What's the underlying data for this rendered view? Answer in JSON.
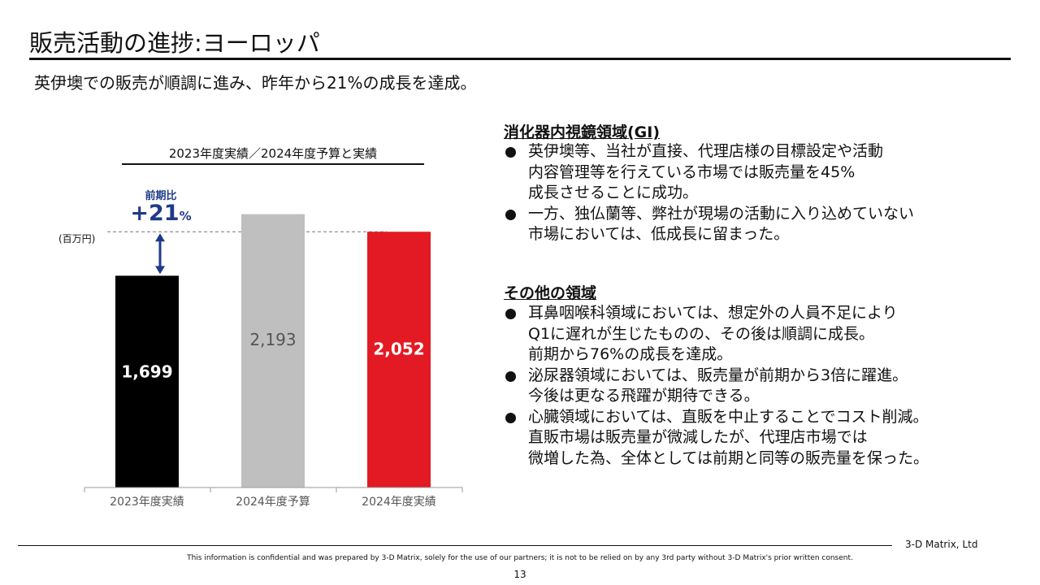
{
  "header": {
    "title": "販売活動の進捗:ヨーロッパ",
    "subtitle": "英伊墺での販売が順調に進み、昨年から21%の成長を達成。"
  },
  "chart_data": {
    "type": "bar",
    "title": "2023年度実績／2024年度予算と実績",
    "unit_label": "(百万円)",
    "categories": [
      "2023年度実績",
      "2024年度予算",
      "2024年度実績"
    ],
    "values": [
      1699,
      2193,
      2052
    ],
    "value_labels": [
      "1,699",
      "2,193",
      "2,052"
    ],
    "bar_colors": [
      "#000000",
      "#bfbfbf",
      "#e31a23"
    ],
    "label_colors": [
      "#ffffff",
      "#555555",
      "#ffffff"
    ],
    "ylim": [
      0,
      2400
    ],
    "annotation": {
      "label": "前期比",
      "value": "+21",
      "suffix": "%",
      "color": "#1f3a8a"
    }
  },
  "sections": [
    {
      "heading": "消化器内視鏡領域(GI)",
      "bullets": [
        "英伊墺等、当社が直接、代理店様の目標設定や活動\n内容管理等を行えている市場では販売量を45%\n成長させることに成功。",
        "一方、独仏蘭等、弊社が現場の活動に入り込めていない\n市場においては、低成長に留まった。"
      ]
    },
    {
      "heading": "その他の領域",
      "bullets": [
        "耳鼻咽喉科領域においては、想定外の人員不足により\nQ1に遅れが生じたものの、その後は順調に成長。\n前期から76%の成長を達成。",
        "泌尿器領域においては、販売量が前期から3倍に躍進。\n今後は更なる飛躍が期待できる。",
        "心臓領域においては、直販を中止することでコスト削減。\n直販市場は販売量が微減したが、代理店市場では\n微増した為、全体としては前期と同等の販売量を保った。"
      ]
    }
  ],
  "footer": {
    "company": "3-D Matrix, Ltd",
    "disclaimer": "This information is confidential and was prepared by 3-D Matrix, solely for the use of our partners; it is not to be relied on by any 3rd party without 3-D Matrix's prior written consent.",
    "page_number": "13"
  }
}
